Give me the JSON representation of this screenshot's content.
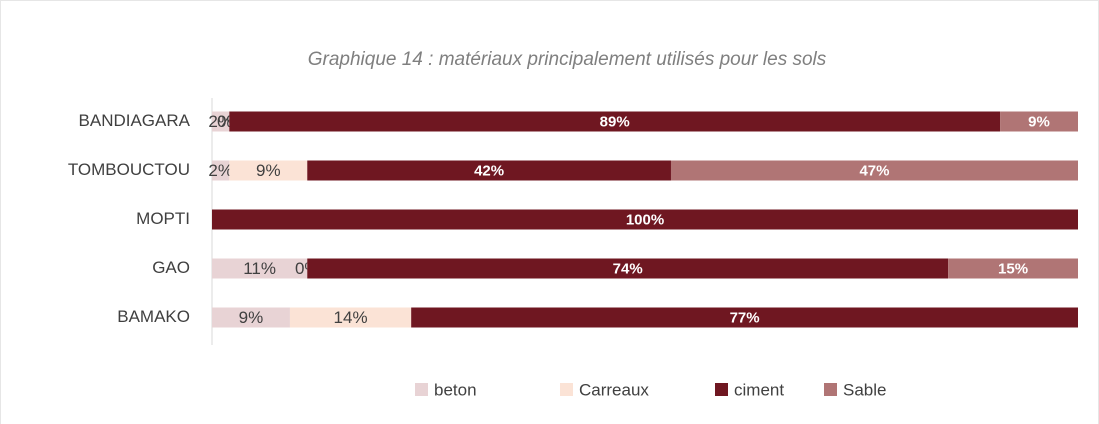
{
  "chart_data": {
    "type": "stacked-barh",
    "title": "Graphique 14 : matériaux principalement utilisés pour les sols",
    "categories": [
      "BANDIAGARA",
      "TOMBOUCTOU",
      "MOPTI",
      "GAO",
      "BAMAKO"
    ],
    "xlim": [
      0,
      100
    ],
    "legend": "bottom",
    "series": [
      {
        "name": "beton",
        "color": "#e8d3d5",
        "values": [
          2,
          2,
          null,
          11,
          9
        ],
        "value_labels": [
          "2%",
          "2%",
          null,
          "11%",
          "9%"
        ]
      },
      {
        "name": "Carreaux",
        "color": "#fbe3d6",
        "values": [
          0,
          9,
          null,
          0,
          14
        ],
        "value_labels": [
          "0%",
          "9%",
          null,
          "0%",
          "14%"
        ]
      },
      {
        "name": "ciment",
        "color": "#6f1721",
        "values": [
          89,
          42,
          100,
          74,
          77
        ],
        "value_labels": [
          "89%",
          "42%",
          "100%",
          "74%",
          "77%"
        ]
      },
      {
        "name": "Sable",
        "color": "#b07575",
        "values": [
          9,
          47,
          null,
          15,
          null
        ],
        "value_labels": [
          "9%",
          "47%",
          null,
          "15%",
          null
        ]
      }
    ]
  }
}
